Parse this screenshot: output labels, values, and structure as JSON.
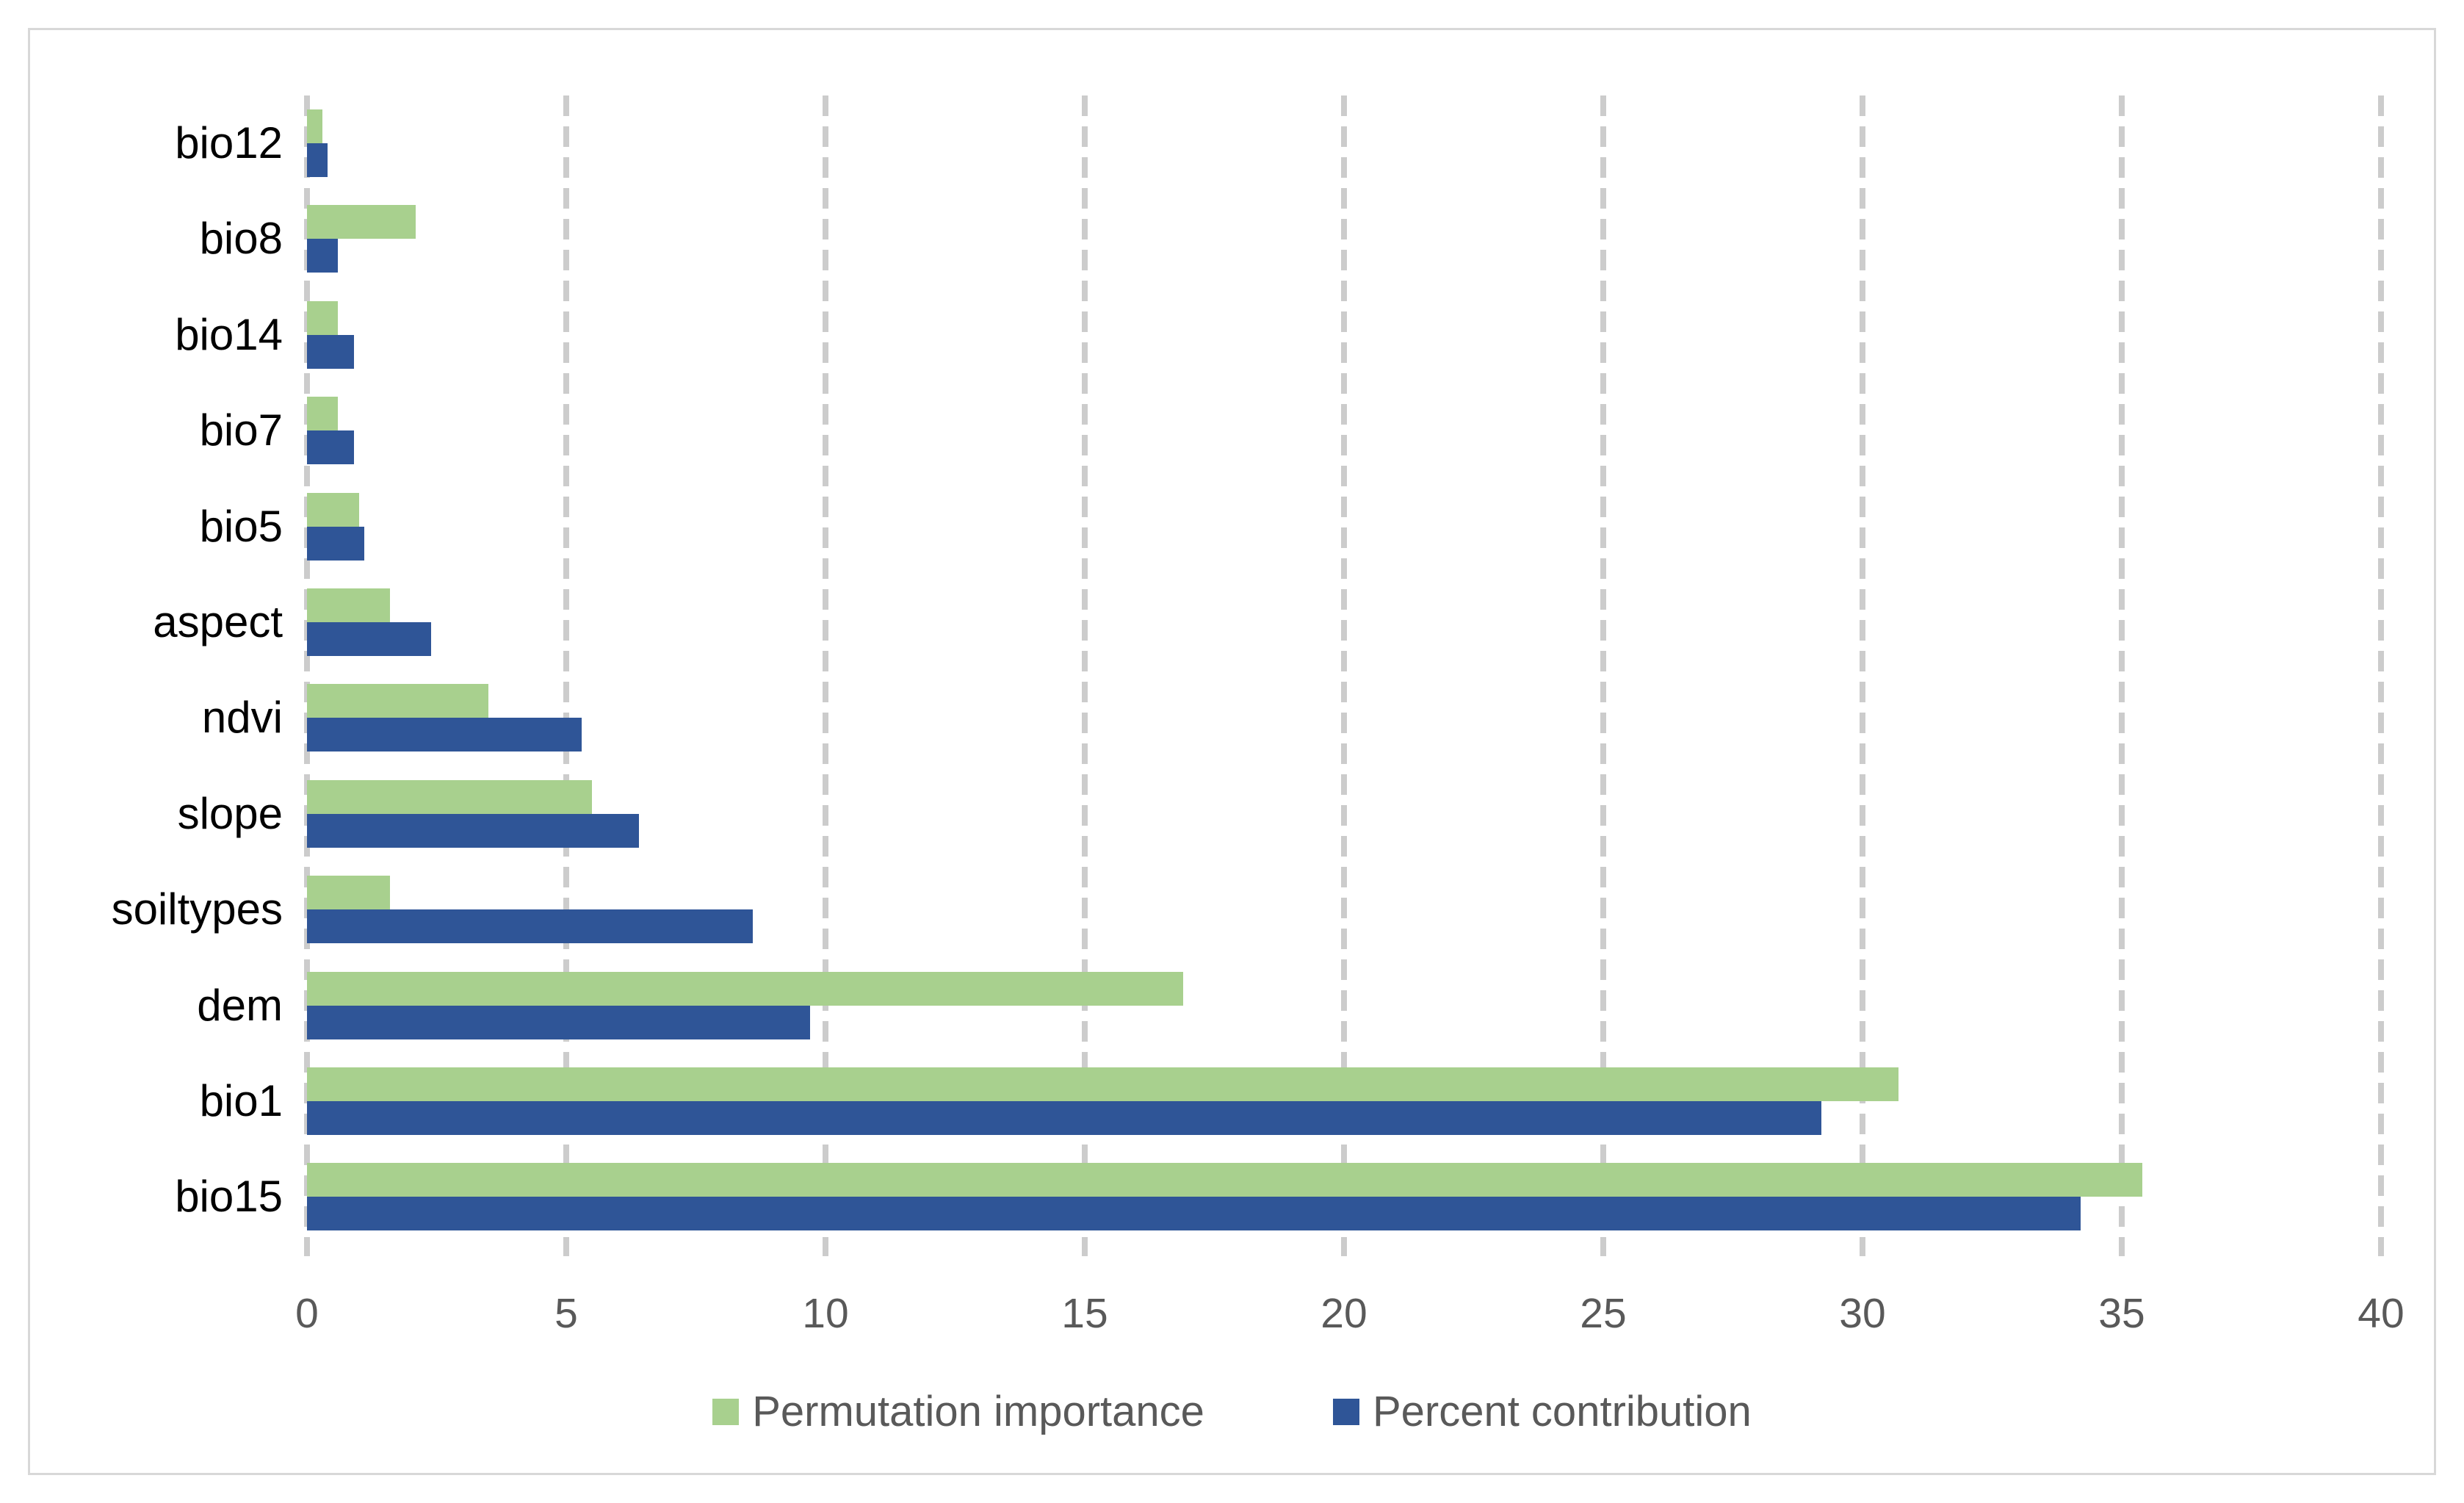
{
  "chart_data": {
    "type": "bar",
    "orientation": "horizontal-grouped",
    "title": "",
    "xlabel": "",
    "ylabel": "",
    "categories_top_to_bottom": [
      "bio12",
      "bio8",
      "bio14",
      "bio7",
      "bio5",
      "aspect",
      "ndvi",
      "slope",
      "soiltypes",
      "dem",
      "bio1",
      "bio15"
    ],
    "series": [
      {
        "name": "Permutation importance",
        "color": "#a8d08e",
        "values": [
          0.3,
          2.1,
          0.6,
          0.6,
          1.0,
          1.6,
          3.5,
          5.5,
          1.6,
          16.9,
          30.7,
          35.4
        ]
      },
      {
        "name": "Percent contribution",
        "color": "#2f5597",
        "values": [
          0.4,
          0.6,
          0.9,
          0.9,
          1.1,
          2.4,
          5.3,
          6.4,
          8.6,
          9.7,
          29.2,
          34.2
        ]
      }
    ],
    "x_axis": {
      "min": 0,
      "max": 40,
      "tick_step": 5,
      "tick_labels": [
        "0",
        "5",
        "10",
        "15",
        "20",
        "25",
        "30",
        "35",
        "40"
      ],
      "tick_color": "#595959"
    },
    "grid": {
      "style": "vertical-dashed",
      "color": "#cccccc",
      "on": true
    },
    "legend": {
      "position": "bottom-center",
      "text_color": "#595959"
    },
    "frame_border_color": "#d8d8d8"
  }
}
